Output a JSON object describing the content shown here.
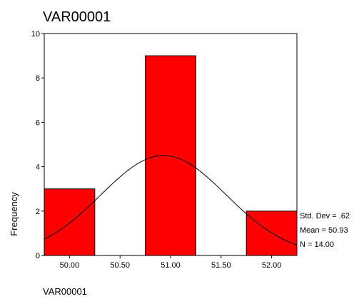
{
  "chart_data": {
    "type": "bar",
    "title": "VAR00001",
    "xlabel": "VAR00001",
    "ylabel": "Frequency",
    "x_ticks": [
      "50.00",
      "50.50",
      "51.00",
      "51.50",
      "52.00"
    ],
    "y_ticks": [
      "0",
      "2",
      "4",
      "6",
      "8",
      "10"
    ],
    "xlim": [
      49.75,
      52.25
    ],
    "ylim": [
      0,
      10
    ],
    "bars": [
      {
        "center": 50.0,
        "width": 0.5,
        "value": 3
      },
      {
        "center": 51.0,
        "width": 0.5,
        "value": 9
      },
      {
        "center": 52.0,
        "width": 0.5,
        "value": 2
      }
    ],
    "normal_curve": {
      "mean": 50.93,
      "std": 0.62,
      "n": 14,
      "bin_width": 0.5
    },
    "stats": [
      "Std. Dev = .62",
      "Mean = 50.93",
      "N = 14.00"
    ],
    "colors": {
      "bar": "#ff0000",
      "bar_edge": "#000000",
      "curve": "#000000"
    }
  }
}
